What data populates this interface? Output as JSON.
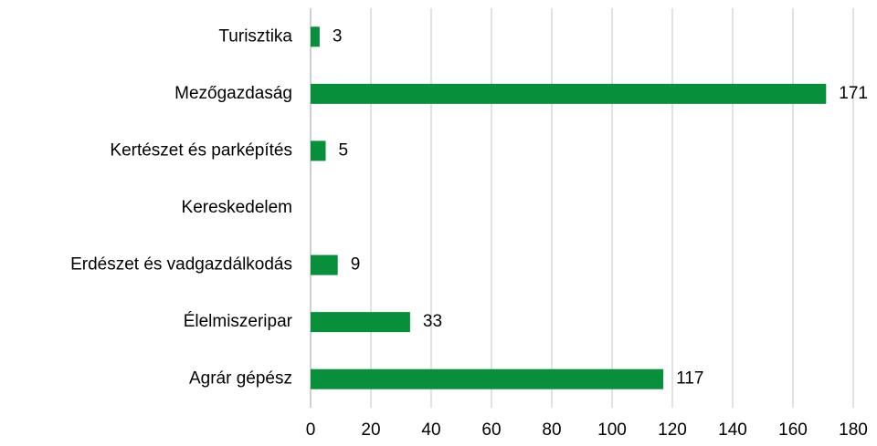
{
  "chart_data": {
    "type": "hbar",
    "categories": [
      "Turisztika",
      "Mezőgazdaság",
      "Kertészet és parképítés",
      "Kereskedelem",
      "Erdészet és vadgazdálkodás",
      "Élelmiszeripar",
      "Agrár gépész"
    ],
    "values": [
      3,
      171,
      5,
      null,
      9,
      33,
      117
    ],
    "color": "#078f3c",
    "xlim": [
      0,
      180
    ],
    "xticks": [
      0,
      20,
      40,
      60,
      80,
      100,
      120,
      140,
      160,
      180
    ],
    "grid": true
  }
}
